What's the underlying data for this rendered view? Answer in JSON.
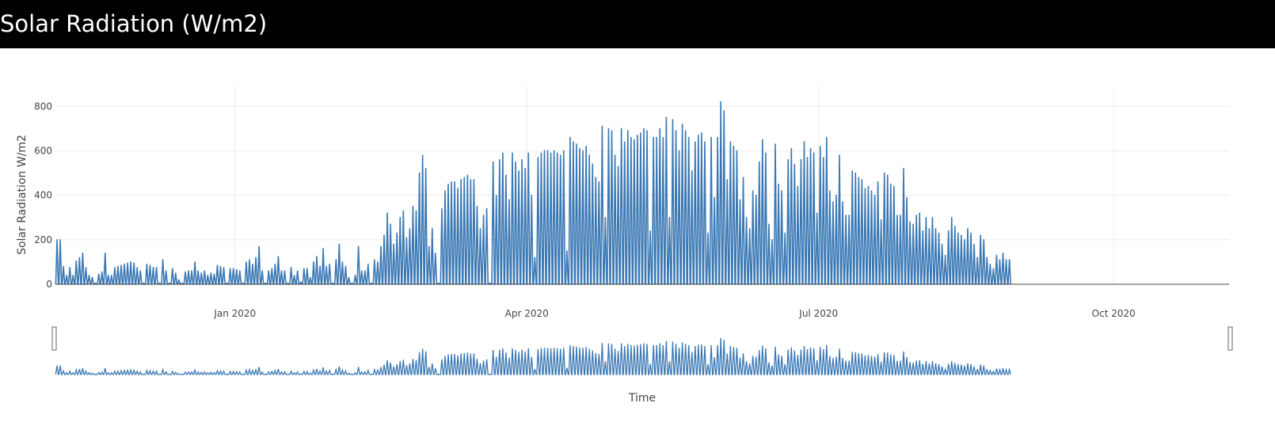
{
  "header": {
    "title": "Solar Radiation (W/m2)"
  },
  "colors": {
    "line": "#3a78b4",
    "grid": "#ebebeb",
    "header_bg": "#000000",
    "header_text": "#ffffff"
  },
  "chart_data": {
    "type": "line",
    "title": "Solar Radiation (W/m2)",
    "xlabel": "Time",
    "ylabel": "Solar Radiation W/m2",
    "xlim": [
      "2019-11-06",
      "2020-11-06"
    ],
    "ylim": [
      0,
      890
    ],
    "y_ticks": [
      0,
      200,
      400,
      600,
      800
    ],
    "y_tick_labels": [
      "0",
      "200",
      "400",
      "600",
      "800"
    ],
    "x_ticks": [
      "2020-01-01",
      "2020-04-01",
      "2020-07-01",
      "2020-10-01"
    ],
    "x_tick_labels": [
      "Jan 2020",
      "Apr 2020",
      "Jul 2020",
      "Oct 2020"
    ],
    "grid": true,
    "range_slider": true,
    "series": [
      {
        "start_date": "2019-11-06",
        "resolution": "daily peak (W/m2)",
        "daily_peak": [
          200,
          200,
          80,
          40,
          75,
          40,
          105,
          120,
          140,
          75,
          40,
          30,
          5,
          45,
          55,
          140,
          40,
          40,
          75,
          80,
          85,
          90,
          95,
          100,
          95,
          75,
          60,
          5,
          90,
          85,
          75,
          75,
          5,
          110,
          60,
          5,
          70,
          50,
          20,
          5,
          55,
          60,
          60,
          100,
          60,
          50,
          60,
          40,
          50,
          45,
          85,
          80,
          75,
          5,
          70,
          70,
          65,
          60,
          5,
          100,
          110,
          90,
          120,
          170,
          60,
          5,
          60,
          70,
          90,
          125,
          60,
          60,
          5,
          75,
          40,
          60,
          10,
          70,
          70,
          30,
          100,
          125,
          80,
          160,
          80,
          90,
          5,
          110,
          180,
          100,
          80,
          30,
          5,
          40,
          170,
          60,
          60,
          90,
          5,
          110,
          100,
          170,
          220,
          320,
          270,
          180,
          230,
          300,
          330,
          210,
          250,
          350,
          330,
          500,
          580,
          520,
          170,
          250,
          140,
          5,
          340,
          420,
          450,
          460,
          460,
          430,
          470,
          480,
          490,
          470,
          470,
          350,
          250,
          310,
          340,
          5,
          550,
          400,
          560,
          590,
          490,
          380,
          590,
          550,
          510,
          560,
          520,
          590,
          400,
          120,
          570,
          590,
          600,
          600,
          590,
          600,
          590,
          580,
          600,
          150,
          660,
          640,
          630,
          610,
          600,
          620,
          580,
          540,
          480,
          460,
          710,
          300,
          700,
          690,
          580,
          530,
          700,
          640,
          690,
          660,
          650,
          670,
          680,
          700,
          690,
          240,
          660,
          660,
          700,
          660,
          750,
          300,
          740,
          690,
          600,
          720,
          690,
          660,
          510,
          640,
          670,
          680,
          640,
          230,
          660,
          390,
          660,
          820,
          780,
          470,
          640,
          620,
          600,
          380,
          480,
          300,
          250,
          420,
          400,
          550,
          650,
          590,
          270,
          200,
          630,
          450,
          420,
          230,
          560,
          610,
          540,
          440,
          560,
          640,
          570,
          610,
          590,
          320,
          620,
          570,
          660,
          420,
          370,
          400,
          580,
          370,
          310,
          310,
          510,
          500,
          480,
          470,
          430,
          440,
          420,
          400,
          460,
          290,
          500,
          490,
          450,
          440,
          310,
          310,
          520,
          390,
          280,
          270,
          310,
          320,
          240,
          300,
          250,
          300,
          250,
          230,
          180,
          130,
          240,
          300,
          260,
          230,
          220,
          200,
          250,
          230,
          180,
          120,
          220,
          200,
          120,
          90,
          70,
          130,
          110,
          140,
          110,
          110
        ]
      }
    ]
  }
}
